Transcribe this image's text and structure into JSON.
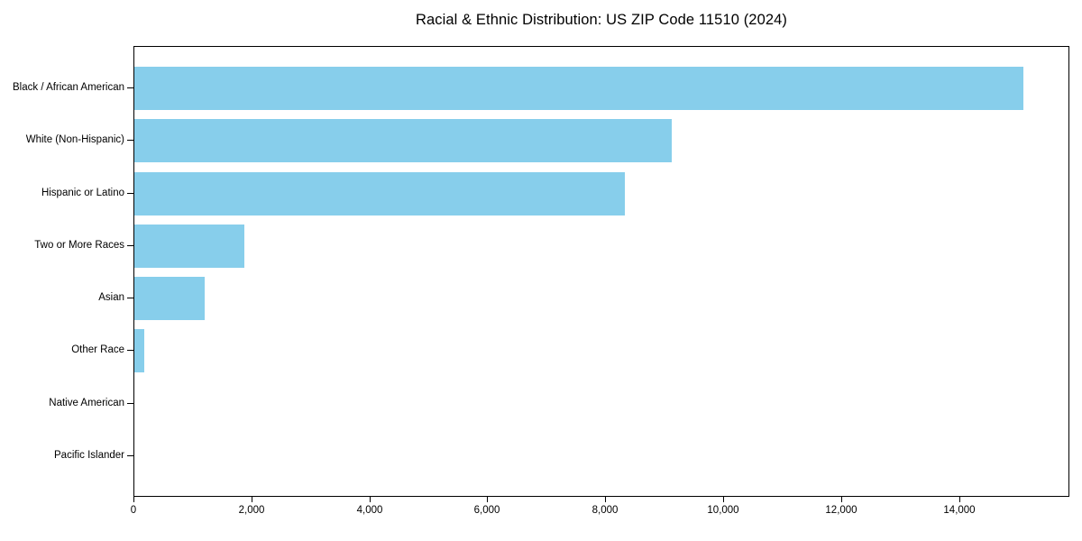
{
  "chart_data": {
    "type": "bar",
    "orientation": "horizontal",
    "title": "Racial & Ethnic Distribution: US ZIP Code 11510 (2024)",
    "categories": [
      "Black / African American",
      "White (Non-Hispanic)",
      "Hispanic or Latino",
      "Two or More Races",
      "Asian",
      "Other Race",
      "Native American",
      "Pacific Islander"
    ],
    "values": [
      15080,
      9110,
      8320,
      1860,
      1190,
      170,
      0,
      0
    ],
    "xlabel": "",
    "ylabel": "",
    "xlim": [
      0,
      15840
    ],
    "xticks": [
      {
        "value": 0,
        "label": "0"
      },
      {
        "value": 2000,
        "label": "2,000"
      },
      {
        "value": 4000,
        "label": "4,000"
      },
      {
        "value": 6000,
        "label": "6,000"
      },
      {
        "value": 8000,
        "label": "8,000"
      },
      {
        "value": 10000,
        "label": "10,000"
      },
      {
        "value": 12000,
        "label": "12,000"
      },
      {
        "value": 14000,
        "label": "14,000"
      }
    ],
    "grid": false,
    "legend": null,
    "colors": {
      "bar": "#87CEEB",
      "frame": "#000000",
      "background": "#ffffff",
      "text": "#000000"
    }
  }
}
